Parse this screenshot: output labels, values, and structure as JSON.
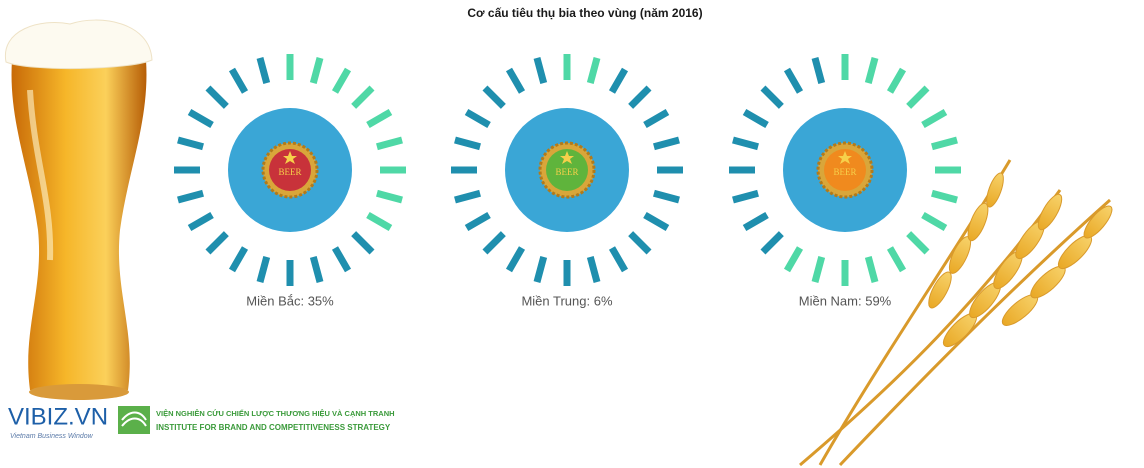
{
  "chart_data": {
    "type": "radial-gauge",
    "title": "Cơ cấu tiêu thụ bia theo vùng (năm 2016)",
    "values": [
      35,
      6,
      59
    ],
    "value_labels": [
      "Miền Bắc: 35%",
      "Miền Trung: 6%",
      "Miền Nam: 59%"
    ],
    "color": "#4fd8a6",
    "track_color": "#1f8fae",
    "badge_label": "BEER"
  },
  "footer": {
    "brand": "VIBIZ.VN",
    "tagline": "Vietnam Business Window",
    "institute_vi": "VIỆN NGHIÊN CỨU CHIẾN LƯỢC THƯƠNG HIỆU VÀ CẠNH TRANH",
    "institute_en": "INSTITUTE FOR BRAND AND COMPETITIVENESS STRATEGY"
  }
}
